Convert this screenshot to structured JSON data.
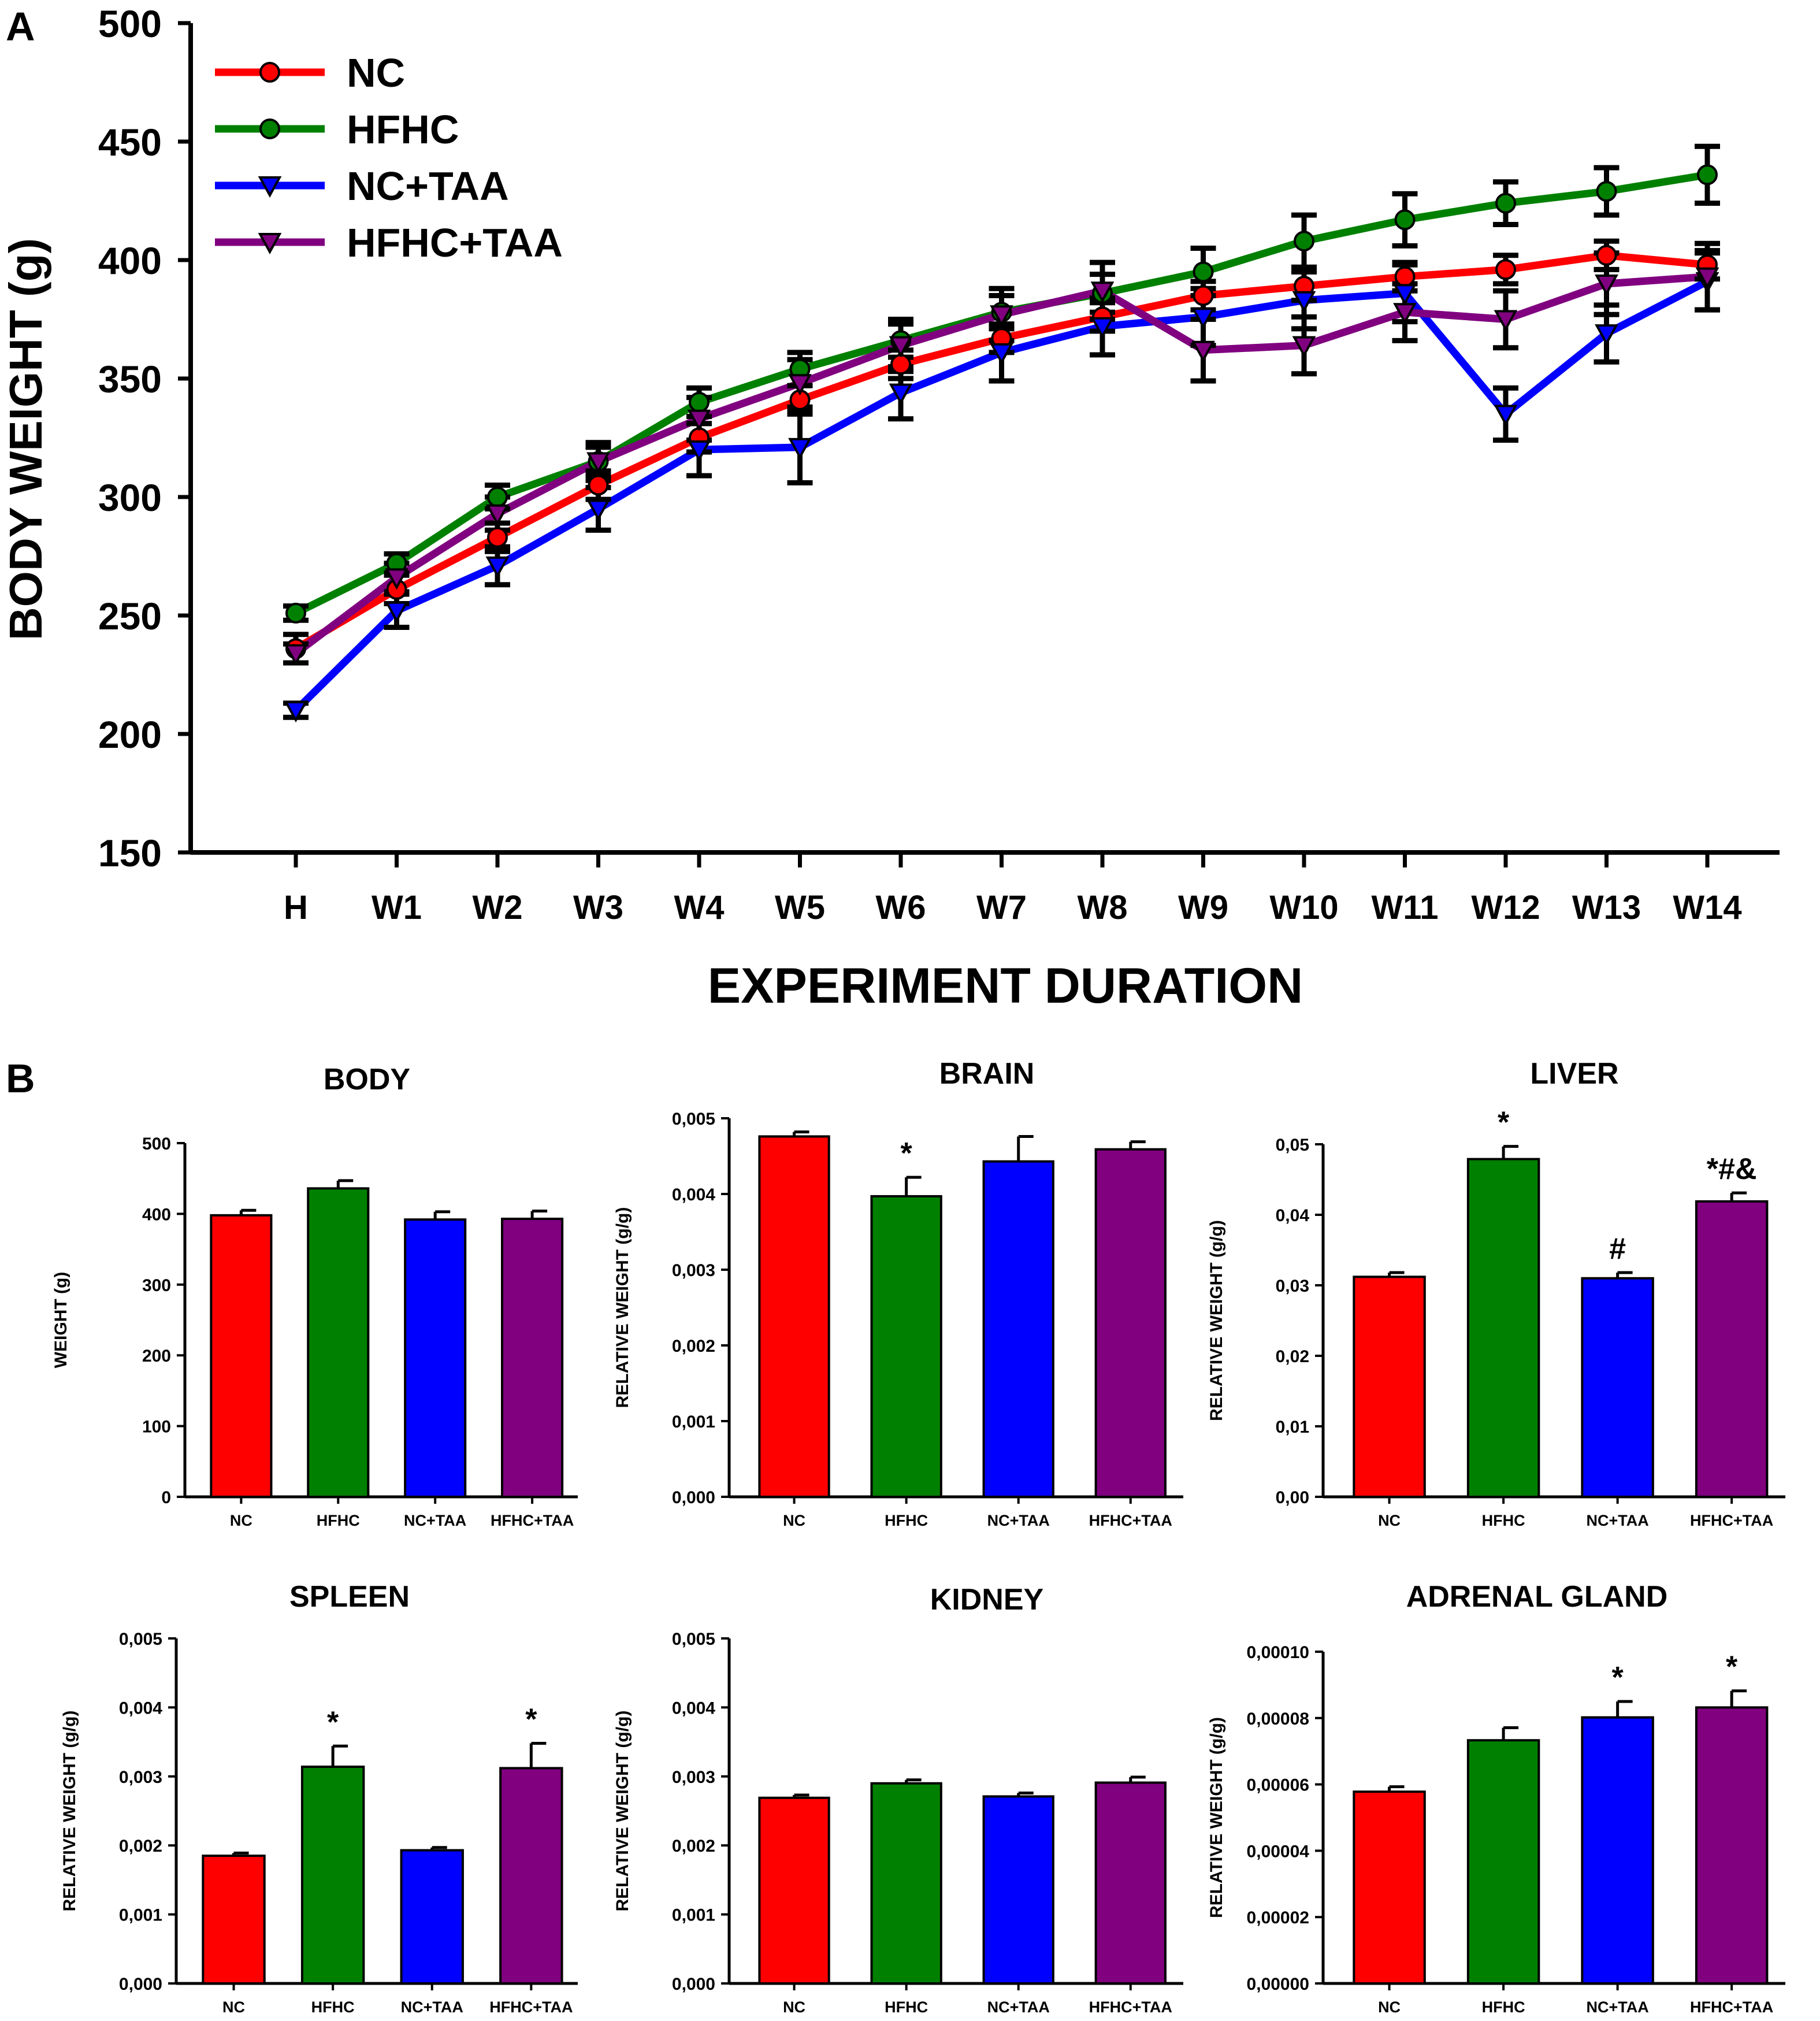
{
  "panel_a_label": "A",
  "panel_b_label": "B",
  "colors": {
    "NC": "#ff0000",
    "HFHC": "#008000",
    "NC+TAA": "#0000ff",
    "HFHC+TAA": "#800080",
    "axis": "#000000"
  },
  "chart_data": [
    {
      "id": "body-weight-line",
      "type": "line",
      "title": "",
      "xlabel": "EXPERIMENT DURATION",
      "ylabel": "BODY WEIGHT (g)",
      "ylim": [
        150,
        500
      ],
      "yticks": [
        "150",
        "200",
        "250",
        "300",
        "350",
        "400",
        "450",
        "500"
      ],
      "categories": [
        "H",
        "W1",
        "W2",
        "W3",
        "W4",
        "W5",
        "W6",
        "W7",
        "W8",
        "W9",
        "W10",
        "W11",
        "W12",
        "W13",
        "W14"
      ],
      "legend_position": "top-left",
      "series": [
        {
          "name": "NC",
          "marker": "circle",
          "values": [
            236,
            261,
            283,
            305,
            325,
            341,
            356,
            367,
            376,
            385,
            389,
            393,
            396,
            402,
            398
          ],
          "errors": [
            6,
            6,
            6,
            6,
            6,
            6,
            6,
            6,
            6,
            6,
            6,
            6,
            6,
            6,
            6
          ]
        },
        {
          "name": "HFHC",
          "marker": "circle",
          "values": [
            251,
            272,
            300,
            315,
            340,
            354,
            366,
            378,
            386,
            395,
            408,
            417,
            424,
            429,
            436
          ],
          "errors": [
            3,
            4,
            5,
            6,
            6,
            7,
            7,
            7,
            8,
            10,
            11,
            11,
            9,
            10,
            12
          ]
        },
        {
          "name": "NC+TAA",
          "marker": "triangle-down",
          "values": [
            210,
            252,
            271,
            295,
            320,
            321,
            344,
            361,
            372,
            376,
            383,
            386,
            335,
            369,
            391
          ],
          "errors": [
            3,
            7,
            8,
            9,
            11,
            15,
            11,
            12,
            12,
            12,
            12,
            12,
            11,
            12,
            12
          ]
        },
        {
          "name": "HFHC+TAA",
          "marker": "triangle-down",
          "values": [
            234,
            266,
            293,
            315,
            333,
            348,
            364,
            377,
            387,
            362,
            364,
            378,
            375,
            390,
            393
          ],
          "errors": [
            4,
            6,
            7,
            8,
            9,
            10,
            11,
            11,
            12,
            13,
            12,
            12,
            12,
            13,
            14
          ]
        }
      ]
    },
    {
      "id": "body",
      "type": "bar",
      "title": "BODY",
      "ylabel": "WEIGHT (g)",
      "ylim": [
        0,
        500
      ],
      "yticks": [
        "0",
        "100",
        "200",
        "300",
        "400",
        "500"
      ],
      "categories": [
        "NC",
        "HFHC",
        "NC+TAA",
        "HFHC+TAA"
      ],
      "values": [
        398,
        436,
        392,
        393
      ],
      "errors": [
        7,
        11,
        11,
        11
      ],
      "annotations": [
        "",
        "",
        "",
        ""
      ]
    },
    {
      "id": "brain",
      "type": "bar",
      "title": "BRAIN",
      "ylabel": "RELATIVE WEIGHT (g/g)",
      "ylim": [
        0,
        0.005
      ],
      "yticks": [
        "0,000",
        "0,001",
        "0,002",
        "0,003",
        "0,004",
        "0,005"
      ],
      "categories": [
        "NC",
        "HFHC",
        "NC+TAA",
        "HFHC+TAA"
      ],
      "values": [
        0.00476,
        0.00397,
        0.00443,
        0.00459
      ],
      "errors": [
        6e-05,
        0.00025,
        0.00033,
        0.0001
      ],
      "annotations": [
        "",
        "*",
        "",
        ""
      ]
    },
    {
      "id": "liver",
      "type": "bar",
      "title": "LIVER",
      "ylabel": "RELATIVE WEIGHT (g/g)",
      "ylim": [
        0,
        0.05
      ],
      "yticks": [
        "0,00",
        "0,01",
        "0,02",
        "0,03",
        "0,04",
        "0,05"
      ],
      "categories": [
        "NC",
        "HFHC",
        "NC+TAA",
        "HFHC+TAA"
      ],
      "values": [
        0.0312,
        0.0479,
        0.031,
        0.0419
      ],
      "errors": [
        0.0006,
        0.0018,
        0.0008,
        0.0012
      ],
      "annotations": [
        "",
        "*",
        "#",
        "*#&"
      ]
    },
    {
      "id": "spleen",
      "type": "bar",
      "title": "SPLEEN",
      "ylabel": "RELATIVE WEIGHT (g/g)",
      "ylim": [
        0,
        0.005
      ],
      "yticks": [
        "0,000",
        "0,001",
        "0,002",
        "0,003",
        "0,004",
        "0,005"
      ],
      "categories": [
        "NC",
        "HFHC",
        "NC+TAA",
        "HFHC+TAA"
      ],
      "values": [
        0.00185,
        0.00314,
        0.00193,
        0.00312
      ],
      "errors": [
        4e-05,
        0.0003,
        4e-05,
        0.00036
      ],
      "annotations": [
        "",
        "*",
        "",
        "*"
      ]
    },
    {
      "id": "kidney",
      "type": "bar",
      "title": "KIDNEY",
      "ylabel": "RELATIVE WEIGHT (g/g)",
      "ylim": [
        0,
        0.005
      ],
      "yticks": [
        "0,000",
        "0,001",
        "0,002",
        "0,003",
        "0,004",
        "0,005"
      ],
      "categories": [
        "NC",
        "HFHC",
        "NC+TAA",
        "HFHC+TAA"
      ],
      "values": [
        0.00269,
        0.0029,
        0.00271,
        0.00291
      ],
      "errors": [
        4e-05,
        5e-05,
        5e-05,
        8e-05
      ],
      "annotations": [
        "",
        "",
        "",
        ""
      ]
    },
    {
      "id": "adrenal-gland",
      "type": "bar",
      "title": "ADRENAL GLAND",
      "ylabel": "RELATIVE WEIGHT (g/g)",
      "ylim": [
        0,
        0.0001
      ],
      "yticks": [
        "0,00000",
        "0,00002",
        "0,00004",
        "0,00006",
        "0,00008",
        "0,00010"
      ],
      "categories": [
        "NC",
        "HFHC",
        "NC+TAA",
        "HFHC+TAA"
      ],
      "values": [
        5.78e-05,
        7.33e-05,
        8.02e-05,
        8.32e-05
      ],
      "errors": [
        1.5e-06,
        3.8e-06,
        4.8e-06,
        5e-06
      ],
      "annotations": [
        "",
        "",
        "*",
        "*"
      ]
    }
  ]
}
